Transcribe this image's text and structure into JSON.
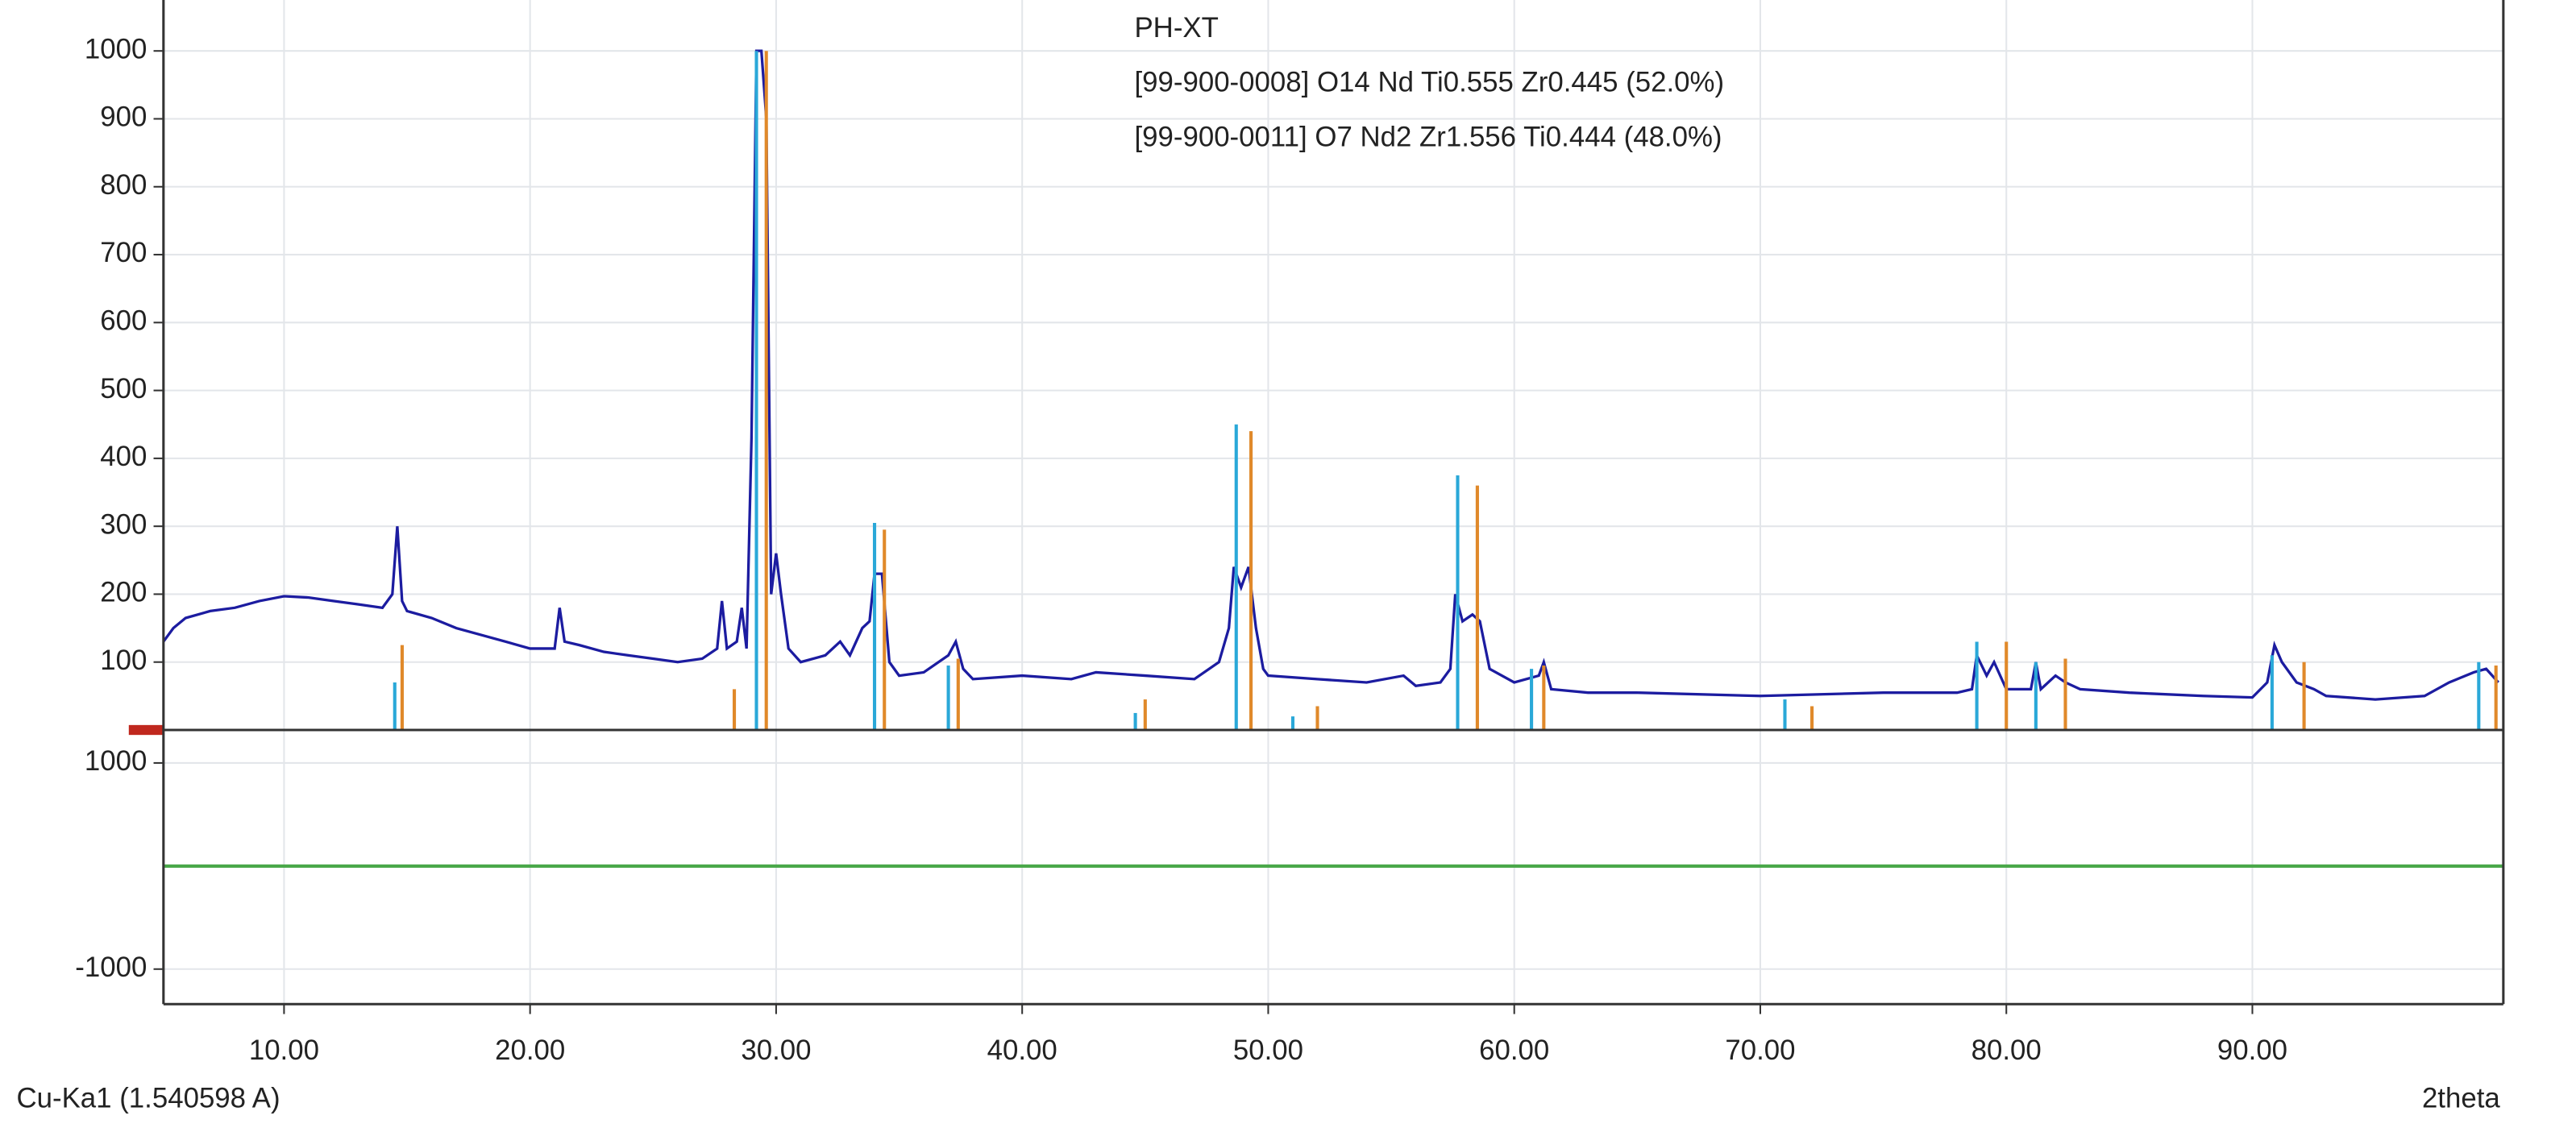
{
  "chart_data": [
    {
      "type": "line",
      "xlim": [
        5.1,
        100.2
      ],
      "ylim": [
        0,
        1075
      ],
      "yticks": [
        100,
        200,
        300,
        400,
        500,
        600,
        700,
        800,
        900,
        1000
      ],
      "grid": true,
      "series": [
        {
          "name": "PH-XT",
          "color": "#1c1ca0",
          "style": "line",
          "x": [
            5.1,
            5.5,
            6,
            7,
            8,
            9,
            10,
            11,
            12,
            13,
            14,
            14.4,
            14.6,
            14.8,
            15,
            16,
            17,
            18,
            19,
            20,
            21,
            21.2,
            21.4,
            22,
            23,
            24,
            25,
            26,
            27,
            27.6,
            27.8,
            28,
            28.4,
            28.6,
            28.8,
            29.0,
            29.2,
            29.4,
            29.6,
            29.8,
            30.0,
            30.2,
            30.5,
            31,
            32,
            32.6,
            33,
            33.5,
            33.8,
            34.0,
            34.3,
            34.6,
            35,
            36,
            37,
            37.3,
            37.6,
            38,
            40,
            42,
            43,
            45,
            47,
            48,
            48.4,
            48.6,
            48.9,
            49.2,
            49.5,
            49.8,
            50,
            52,
            54,
            55.5,
            56,
            57,
            57.4,
            57.6,
            57.9,
            58.3,
            58.6,
            59,
            60,
            61,
            61.2,
            61.5,
            63,
            65,
            70,
            75,
            78,
            78.6,
            78.8,
            79.2,
            79.5,
            80,
            81,
            81.2,
            81.4,
            82,
            82.4,
            83,
            85,
            88,
            90,
            90.6,
            90.9,
            91.2,
            91.8,
            92.5,
            93,
            95,
            97,
            98,
            99,
            99.5,
            100
          ],
          "values": [
            130,
            150,
            165,
            175,
            180,
            190,
            197,
            195,
            190,
            185,
            180,
            200,
            300,
            190,
            175,
            165,
            150,
            140,
            130,
            120,
            120,
            180,
            130,
            125,
            115,
            110,
            105,
            100,
            105,
            120,
            190,
            120,
            130,
            180,
            120,
            430,
            1000,
            1000,
            900,
            200,
            260,
            200,
            120,
            100,
            110,
            130,
            110,
            150,
            160,
            230,
            230,
            100,
            80,
            85,
            110,
            130,
            90,
            75,
            80,
            75,
            85,
            80,
            75,
            100,
            150,
            240,
            210,
            240,
            150,
            90,
            80,
            75,
            70,
            80,
            65,
            70,
            90,
            200,
            160,
            170,
            160,
            90,
            70,
            80,
            100,
            60,
            55,
            55,
            50,
            55,
            55,
            60,
            110,
            80,
            100,
            60,
            60,
            100,
            60,
            80,
            70,
            60,
            55,
            50,
            48,
            70,
            125,
            100,
            70,
            60,
            50,
            45,
            50,
            70,
            85,
            90,
            70
          ]
        },
        {
          "name": "[99-900-0008] O14 Nd Ti0.555 Zr0.445  (52.0%)",
          "color": "#e0892a",
          "style": "stick",
          "x": [
            14.8,
            28.3,
            29.6,
            34.4,
            37.4,
            45.0,
            49.3,
            52.0,
            58.5,
            61.2,
            72.1,
            80.0,
            82.4,
            92.1,
            99.9
          ],
          "values": [
            125,
            60,
            1000,
            295,
            105,
            45,
            440,
            35,
            360,
            95,
            35,
            130,
            105,
            100,
            95
          ]
        },
        {
          "name": "[99-900-0011] O7 Nd2 Zr1.556 Ti0.444  (48.0%)",
          "color": "#2aa8d8",
          "style": "stick",
          "x": [
            14.5,
            29.2,
            34.0,
            37.0,
            44.6,
            48.7,
            51.0,
            57.7,
            60.7,
            71.0,
            78.8,
            81.2,
            90.8,
            99.2
          ],
          "values": [
            70,
            1000,
            305,
            95,
            25,
            450,
            20,
            375,
            90,
            45,
            130,
            100,
            110,
            100
          ]
        }
      ]
    },
    {
      "type": "line",
      "xlim": [
        5.1,
        100.2
      ],
      "ylim": [
        -1340,
        1320
      ],
      "yticks": [
        1000,
        -1000
      ],
      "tick_color": "#3a9a3a",
      "xticks": [
        {
          "value": 10,
          "label": "10.00"
        },
        {
          "value": 20,
          "label": "20.00"
        },
        {
          "value": 30,
          "label": "30.00"
        },
        {
          "value": 40,
          "label": "40.00"
        },
        {
          "value": 50,
          "label": "50.00"
        },
        {
          "value": 60,
          "label": "60.00"
        },
        {
          "value": 70,
          "label": "70.00"
        },
        {
          "value": 80,
          "label": "80.00"
        },
        {
          "value": 90,
          "label": "90.00"
        }
      ],
      "xlabel": "2theta",
      "note": "Cu-Ka1 (1.540598 A)",
      "grid": true,
      "series": [
        {
          "color": "#4aa84a",
          "style": "line",
          "x": [
            5.1,
            100.2
          ],
          "values": [
            0,
            0
          ]
        }
      ]
    }
  ]
}
